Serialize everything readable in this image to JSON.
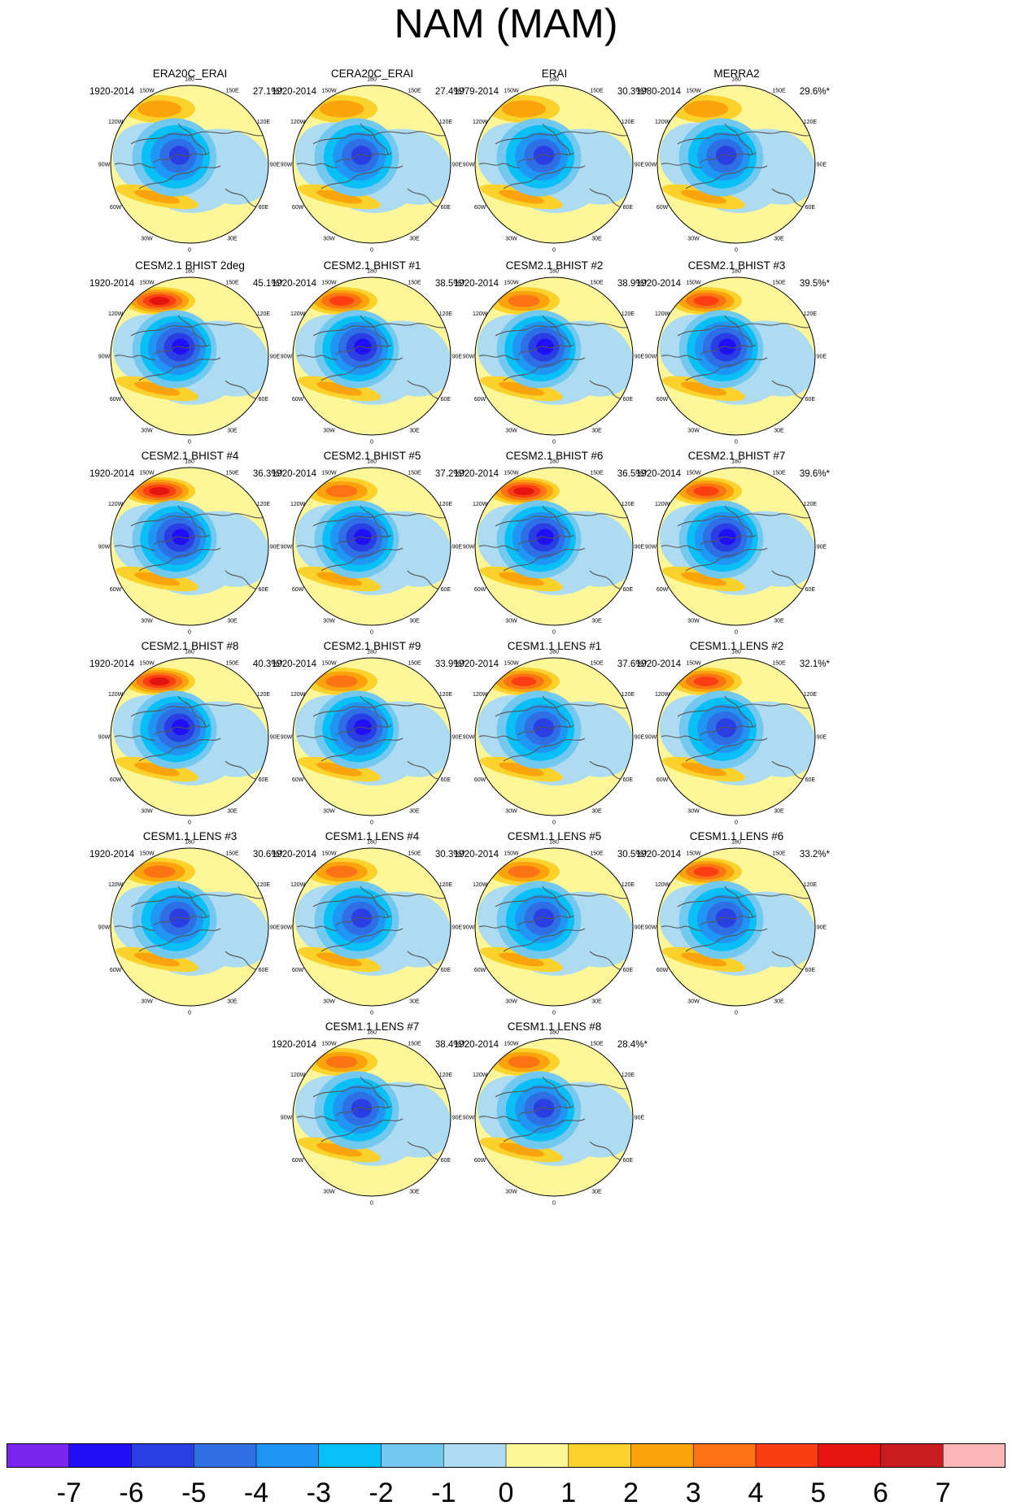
{
  "title": "NAM (MAM)",
  "chart_data": {
    "type": "map-grid",
    "projection": "north polar stereographic",
    "longitude_labels": [
      "180",
      "150W",
      "150E",
      "120W",
      "120E",
      "90W",
      "90E",
      "60W",
      "60E",
      "30W",
      "30E",
      "0"
    ],
    "panels": [
      {
        "title": "ERA20C_ERAI",
        "period": "1920-2014",
        "variance": "27.1%*",
        "max_pos": 2,
        "max_neg": -5
      },
      {
        "title": "CERA20C_ERAI",
        "period": "1920-2014",
        "variance": "27.4%*",
        "max_pos": 2,
        "max_neg": -5
      },
      {
        "title": "ERAI",
        "period": "1979-2014",
        "variance": "30.3%*",
        "max_pos": 2,
        "max_neg": -5
      },
      {
        "title": "MERRA2",
        "period": "1980-2014",
        "variance": "29.6%*",
        "max_pos": 2,
        "max_neg": -5
      },
      {
        "title": "CESM2.1 BHIST 2deg",
        "period": "1920-2014",
        "variance": "45.1%*",
        "max_pos": 5,
        "max_neg": -6
      },
      {
        "title": "CESM2.1 BHIST #1",
        "period": "1920-2014",
        "variance": "38.5%*",
        "max_pos": 4,
        "max_neg": -6
      },
      {
        "title": "CESM2.1 BHIST #2",
        "period": "1920-2014",
        "variance": "38.9%*",
        "max_pos": 3,
        "max_neg": -6
      },
      {
        "title": "CESM2.1 BHIST #3",
        "period": "1920-2014",
        "variance": "39.5%*",
        "max_pos": 4,
        "max_neg": -6
      },
      {
        "title": "CESM2.1 BHIST #4",
        "period": "1920-2014",
        "variance": "36.3%*",
        "max_pos": 5,
        "max_neg": -6
      },
      {
        "title": "CESM2.1 BHIST #5",
        "period": "1920-2014",
        "variance": "37.2%*",
        "max_pos": 3,
        "max_neg": -6
      },
      {
        "title": "CESM2.1 BHIST #6",
        "period": "1920-2014",
        "variance": "36.5%*",
        "max_pos": 5,
        "max_neg": -6
      },
      {
        "title": "CESM2.1 BHIST #7",
        "period": "1920-2014",
        "variance": "39.6%*",
        "max_pos": 4,
        "max_neg": -6
      },
      {
        "title": "CESM2.1 BHIST #8",
        "period": "1920-2014",
        "variance": "40.3%*",
        "max_pos": 5,
        "max_neg": -6
      },
      {
        "title": "CESM2.1 BHIST #9",
        "period": "1920-2014",
        "variance": "33.9%*",
        "max_pos": 3,
        "max_neg": -6
      },
      {
        "title": "CESM1.1 LENS #1",
        "period": "1920-2014",
        "variance": "37.6%*",
        "max_pos": 4,
        "max_neg": -5
      },
      {
        "title": "CESM1.1 LENS #2",
        "period": "1920-2014",
        "variance": "32.1%*",
        "max_pos": 4,
        "max_neg": -5
      },
      {
        "title": "CESM1.1 LENS #3",
        "period": "1920-2014",
        "variance": "30.6%*",
        "max_pos": 3,
        "max_neg": -5
      },
      {
        "title": "CESM1.1 LENS #4",
        "period": "1920-2014",
        "variance": "30.3%*",
        "max_pos": 3,
        "max_neg": -5
      },
      {
        "title": "CESM1.1 LENS #5",
        "period": "1920-2014",
        "variance": "30.5%*",
        "max_pos": 3,
        "max_neg": -5
      },
      {
        "title": "CESM1.1 LENS #6",
        "period": "1920-2014",
        "variance": "33.2%*",
        "max_pos": 4,
        "max_neg": -5
      },
      {
        "title": "CESM1.1 LENS #7",
        "period": "1920-2014",
        "variance": "38.4%*",
        "max_pos": 3,
        "max_neg": -5
      },
      {
        "title": "CESM1.1 LENS #8",
        "period": "1920-2014",
        "variance": "28.4%*",
        "max_pos": 3,
        "max_neg": -5
      }
    ],
    "colorbar": {
      "ticks": [
        "-7",
        "-6",
        "-5",
        "-4",
        "-3",
        "-2",
        "-1",
        "0",
        "1",
        "2",
        "3",
        "4",
        "5",
        "6",
        "7"
      ],
      "colors": [
        "#7d25f0",
        "#1f0ef6",
        "#2a3fe3",
        "#2f6fe6",
        "#1f95f4",
        "#08bff6",
        "#73c8ef",
        "#addcf2",
        "#fdf79a",
        "#fbd12b",
        "#fba30a",
        "#fb7312",
        "#fa3e12",
        "#e51410",
        "#c81c1e",
        "#fbb6b6"
      ]
    }
  }
}
